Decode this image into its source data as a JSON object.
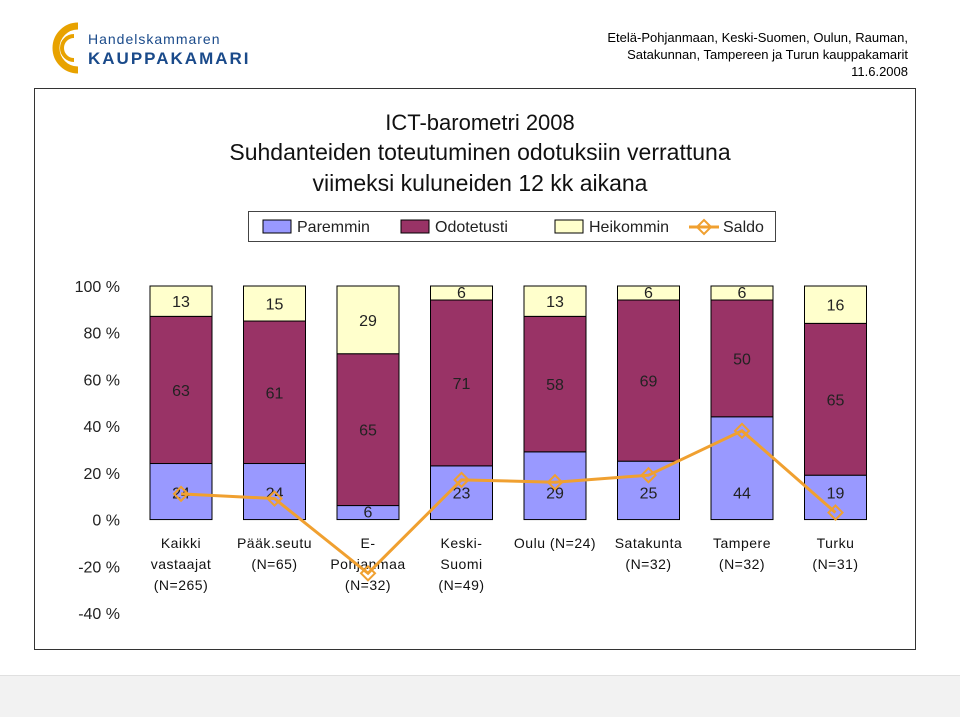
{
  "header": {
    "logo_line1": "Handelskammaren",
    "logo_line2": "KAUPPAKAMARI",
    "org_line1": "Etelä-Pohjanmaan, Keski-Suomen, Oulun, Rauman,",
    "org_line2": "Satakunnan, Tampereen ja Turun kauppakamarit",
    "date": "11.6.2008"
  },
  "chart_data": {
    "type": "bar",
    "stacked": true,
    "title_line1": "ICT-barometri 2008",
    "title_line2": "Suhdanteiden toteutuminen odotuksiin verrattuna",
    "title_line3": "viimeksi kuluneiden 12 kk aikana",
    "categories": [
      [
        "Kaikki",
        "vastaajat",
        "(N=265)"
      ],
      [
        "Pääk.seutu",
        "(N=65)"
      ],
      [
        "E-",
        "Pohjanmaa",
        "(N=32)"
      ],
      [
        "Keski-",
        "Suomi",
        "(N=49)"
      ],
      [
        "Oulu (N=24)"
      ],
      [
        "Satakunta",
        "(N=32)"
      ],
      [
        "Tampere",
        "(N=32)"
      ],
      [
        "Turku",
        "(N=31)"
      ]
    ],
    "series": [
      {
        "name": "Paremmin",
        "color": "#9999ff",
        "values": [
          24,
          24,
          6,
          23,
          29,
          25,
          44,
          19
        ]
      },
      {
        "name": "Odotetusti",
        "color": "#993366",
        "values": [
          63,
          61,
          65,
          71,
          58,
          69,
          50,
          65
        ]
      },
      {
        "name": "Heikommin",
        "color": "#ffffcc",
        "values": [
          13,
          15,
          29,
          6,
          13,
          6,
          6,
          16
        ]
      }
    ],
    "line_series": {
      "name": "Saldo",
      "color": "#f0a030",
      "values": [
        11,
        9,
        -23,
        17,
        16,
        19,
        38,
        3
      ]
    },
    "y_ticks": [
      "100 %",
      "80 %",
      "60 %",
      "40 %",
      "20 %",
      "0 %",
      "-20 %",
      "-40 %"
    ],
    "ylim": [
      -40,
      100
    ],
    "legend_position": "top",
    "grid": false
  }
}
